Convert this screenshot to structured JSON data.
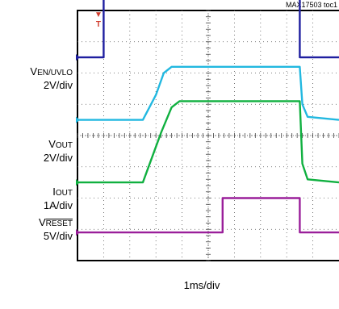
{
  "chart_data": {
    "type": "line",
    "title": "",
    "header_tag": "MAX17503 toc1",
    "xlabel": "1ms/div",
    "x_divisions": 10,
    "y_divisions": 8,
    "grid": true,
    "trigger_marker": "T",
    "channels": [
      {
        "name_main": "V",
        "name_sub": "EN/UVLO",
        "name_overline": false,
        "scale": "2V/div",
        "color": "#1f1fa0",
        "baseline_div": 1.5,
        "x": [
          0,
          1.0,
          1.0,
          8.5,
          8.5,
          10
        ],
        "y": [
          0,
          0,
          2.2,
          2.2,
          0,
          0
        ]
      },
      {
        "name_main": "V",
        "name_sub": "OUT",
        "name_overline": false,
        "scale": "2V/div",
        "color": "#22b8e0",
        "baseline_div": 3.5,
        "x": [
          0,
          2.5,
          3.0,
          3.3,
          3.6,
          8.5,
          8.6,
          8.8,
          10
        ],
        "y": [
          0,
          0,
          0.8,
          1.5,
          1.7,
          1.7,
          0.5,
          0.1,
          0
        ]
      },
      {
        "name_main": "I",
        "name_sub": "OUT",
        "name_overline": false,
        "scale": "1A/div",
        "color": "#10b040",
        "baseline_div": 5.5,
        "x": [
          0,
          2.5,
          3.2,
          3.6,
          3.9,
          8.5,
          8.6,
          8.8,
          10
        ],
        "y": [
          0,
          0,
          1.6,
          2.4,
          2.6,
          2.6,
          0.6,
          0.1,
          0
        ]
      },
      {
        "name_main": "V",
        "name_sub": "RESET",
        "name_overline": true,
        "scale": "5V/div",
        "color": "#9a1f9a",
        "baseline_div": 7.1,
        "x": [
          0,
          5.55,
          5.55,
          8.5,
          8.5,
          10
        ],
        "y": [
          0,
          0,
          1.1,
          1.1,
          0,
          0
        ]
      }
    ]
  }
}
